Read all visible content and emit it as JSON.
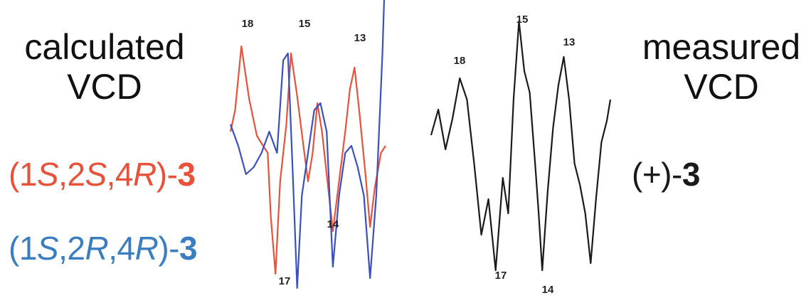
{
  "labels": {
    "calculated_line1": "calculated",
    "calculated_line2": "VCD",
    "measured_line1": "measured",
    "measured_line2": "VCD"
  },
  "compounds": {
    "red": {
      "open": "(1",
      "s1": "S",
      "c1": ",2",
      "s2": "S",
      "c2": ",4",
      "s3": "R",
      "close": ")-",
      "number": "3"
    },
    "blue": {
      "open": "(1",
      "s1": "S",
      "c1": ",2",
      "s2": "R",
      "c2": ",4",
      "s3": "R",
      "close": ")-",
      "number": "3"
    },
    "black": {
      "prefix": "(+)-",
      "number": "3"
    }
  },
  "colors": {
    "red": "#e8523a",
    "blue": "#3a4fc0",
    "black": "#1a1a1a"
  },
  "chart_data": {
    "type": "line",
    "calculated": {
      "series": [
        {
          "color": "red",
          "x": [
            0,
            0.3,
            0.7,
            1.2,
            1.7,
            2.1,
            2.4,
            2.6,
            2.9,
            3.2,
            3.6,
            3.9,
            4.3,
            4.7,
            5.0,
            5.3,
            5.6,
            5.9,
            6.2,
            6.6,
            7.0,
            7.4,
            7.7,
            8.0,
            8.3,
            8.7,
            9.0,
            9.3,
            9.7,
            10.0
          ],
          "y": [
            0.05,
            0.2,
            0.65,
            0.28,
            0.02,
            -0.05,
            -0.1,
            -0.55,
            -0.95,
            -0.3,
            0.1,
            0.6,
            0.3,
            -0.05,
            -0.3,
            -0.1,
            0.25,
            0.05,
            -0.25,
            -0.65,
            -0.3,
            0.05,
            0.35,
            0.5,
            0.2,
            -0.25,
            -0.62,
            -0.35,
            -0.1,
            -0.05
          ],
          "labeled_extrema": [
            {
              "label": "18",
              "at_index": 2
            },
            {
              "label": "15",
              "at_index": 11
            },
            {
              "label": "14",
              "at_index": 19
            },
            {
              "label": "13",
              "at_index": 23
            },
            {
              "label": "17",
              "at_index": 8
            }
          ]
        },
        {
          "color": "blue",
          "x": [
            0,
            0.5,
            1.0,
            1.5,
            2.0,
            2.5,
            3.0,
            3.4,
            3.7,
            4.0,
            4.3,
            4.6,
            5.0,
            5.4,
            5.8,
            6.2,
            6.6,
            7.0,
            7.4,
            7.8,
            8.2,
            8.6,
            9.0,
            9.4,
            9.8,
            10.0
          ],
          "y": [
            0.1,
            -0.05,
            -0.25,
            -0.2,
            -0.1,
            0.05,
            -0.1,
            0.55,
            0.6,
            -0.2,
            -1.05,
            -0.4,
            -0.1,
            0.2,
            0.25,
            0.05,
            -0.9,
            -0.4,
            -0.1,
            -0.05,
            -0.2,
            -0.4,
            -0.98,
            -0.4,
            0.6,
            1.3
          ]
        }
      ],
      "peak_labels_top": [
        "18",
        "15",
        "13"
      ],
      "peak_labels_bottom": [
        "14",
        "17"
      ]
    },
    "measured": {
      "series": [
        {
          "color": "black",
          "x": [
            0,
            0.4,
            0.8,
            1.2,
            1.6,
            2.0,
            2.4,
            2.8,
            3.2,
            3.6,
            4.0,
            4.3,
            4.6,
            4.9,
            5.2,
            5.5,
            5.8,
            6.0,
            6.2,
            6.5,
            6.8,
            7.1,
            7.4,
            7.7,
            8.0,
            8.3,
            8.6,
            8.9,
            9.2,
            9.5,
            9.8,
            10.0
          ],
          "y": [
            0.0,
            0.18,
            -0.1,
            0.12,
            0.4,
            0.25,
            -0.2,
            -0.7,
            -0.45,
            -0.95,
            -0.3,
            -0.55,
            0.25,
            0.8,
            0.45,
            0.3,
            -0.2,
            -0.55,
            -0.95,
            -0.4,
            0.05,
            0.35,
            0.55,
            0.25,
            -0.2,
            -0.35,
            -0.55,
            -0.9,
            -0.45,
            -0.05,
            0.1,
            0.25
          ]
        }
      ],
      "peak_labels_top": [
        "18",
        "15",
        "13"
      ],
      "peak_labels_bottom": [
        "17",
        "14"
      ]
    }
  }
}
